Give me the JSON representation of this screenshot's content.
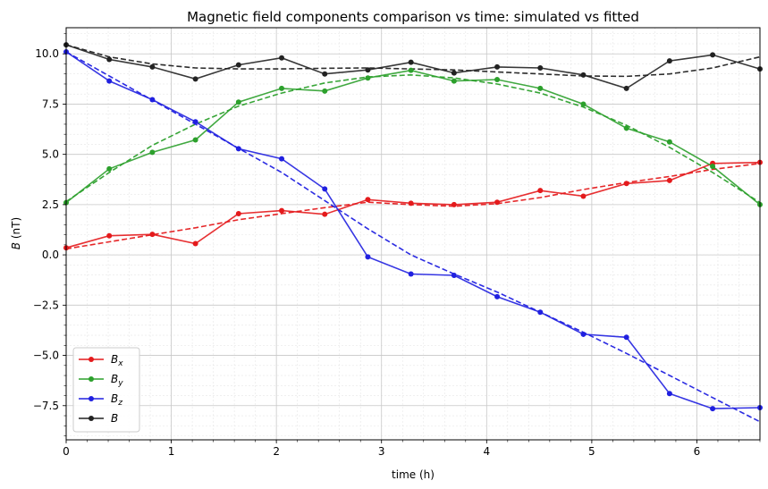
{
  "chart_data": {
    "type": "line",
    "title": "Magnetic field components comparison vs time: simulated vs fitted",
    "xlabel": "time (h)",
    "ylabel_symbol": "B",
    "ylabel_unit": "(nT)",
    "xlim": [
      0,
      6.6
    ],
    "ylim": [
      -9.2,
      11.3
    ],
    "xticks": [
      0,
      1,
      2,
      3,
      4,
      5,
      6
    ],
    "yticks": [
      -7.5,
      -5.0,
      -2.5,
      0.0,
      2.5,
      5.0,
      7.5,
      10.0
    ],
    "grid": true,
    "legend_position": "lower-left",
    "x": [
      0,
      0.41,
      0.82,
      1.23,
      1.64,
      2.05,
      2.46,
      2.87,
      3.28,
      3.69,
      4.1,
      4.51,
      4.92,
      5.33,
      5.74,
      6.15,
      6.6
    ],
    "series": [
      {
        "name": "Bx",
        "symbol": "B",
        "subscript": "x",
        "color": "#e41a1c",
        "values": [
          0.35,
          0.95,
          1.02,
          0.56,
          2.05,
          2.2,
          2.02,
          2.75,
          2.57,
          2.5,
          2.62,
          3.2,
          2.92,
          3.55,
          3.7,
          4.55,
          4.6
        ],
        "fit": [
          0.3,
          0.65,
          1.0,
          1.35,
          1.75,
          2.05,
          2.35,
          2.62,
          2.5,
          2.42,
          2.55,
          2.85,
          3.25,
          3.6,
          3.9,
          4.25,
          4.55
        ]
      },
      {
        "name": "By",
        "symbol": "B",
        "subscript": "y",
        "color": "#2ca02c",
        "values": [
          2.6,
          4.28,
          5.1,
          5.72,
          7.6,
          8.28,
          8.15,
          8.8,
          9.18,
          8.65,
          8.72,
          8.28,
          7.5,
          6.3,
          5.62,
          4.4,
          2.5
        ],
        "fit": [
          2.65,
          4.1,
          5.45,
          6.5,
          7.4,
          8.05,
          8.55,
          8.85,
          8.95,
          8.8,
          8.5,
          8.05,
          7.35,
          6.45,
          5.35,
          4.1,
          2.6
        ]
      },
      {
        "name": "Bz",
        "symbol": "B",
        "subscript": "z",
        "color": "#2020e0",
        "values": [
          10.1,
          8.65,
          7.72,
          6.62,
          5.28,
          4.78,
          3.28,
          -0.1,
          -0.95,
          -1.02,
          -2.08,
          -2.85,
          -3.95,
          -4.1,
          -6.9,
          -7.65,
          -7.6
        ],
        "fit": [
          10.1,
          8.9,
          7.7,
          6.5,
          5.3,
          4.1,
          2.7,
          1.3,
          0.0,
          -0.95,
          -1.85,
          -2.85,
          -3.85,
          -4.9,
          -6.0,
          -7.1,
          -8.3
        ]
      },
      {
        "name": "B",
        "symbol": "B",
        "subscript": "",
        "color": "#222222",
        "values": [
          10.45,
          9.72,
          9.35,
          8.75,
          9.45,
          9.8,
          9.0,
          9.2,
          9.58,
          9.05,
          9.35,
          9.3,
          8.95,
          8.28,
          9.65,
          9.95,
          9.25
        ],
        "fit": [
          10.45,
          9.85,
          9.5,
          9.3,
          9.25,
          9.25,
          9.28,
          9.3,
          9.25,
          9.2,
          9.1,
          9.0,
          8.9,
          8.88,
          9.0,
          9.3,
          9.85
        ]
      }
    ]
  }
}
